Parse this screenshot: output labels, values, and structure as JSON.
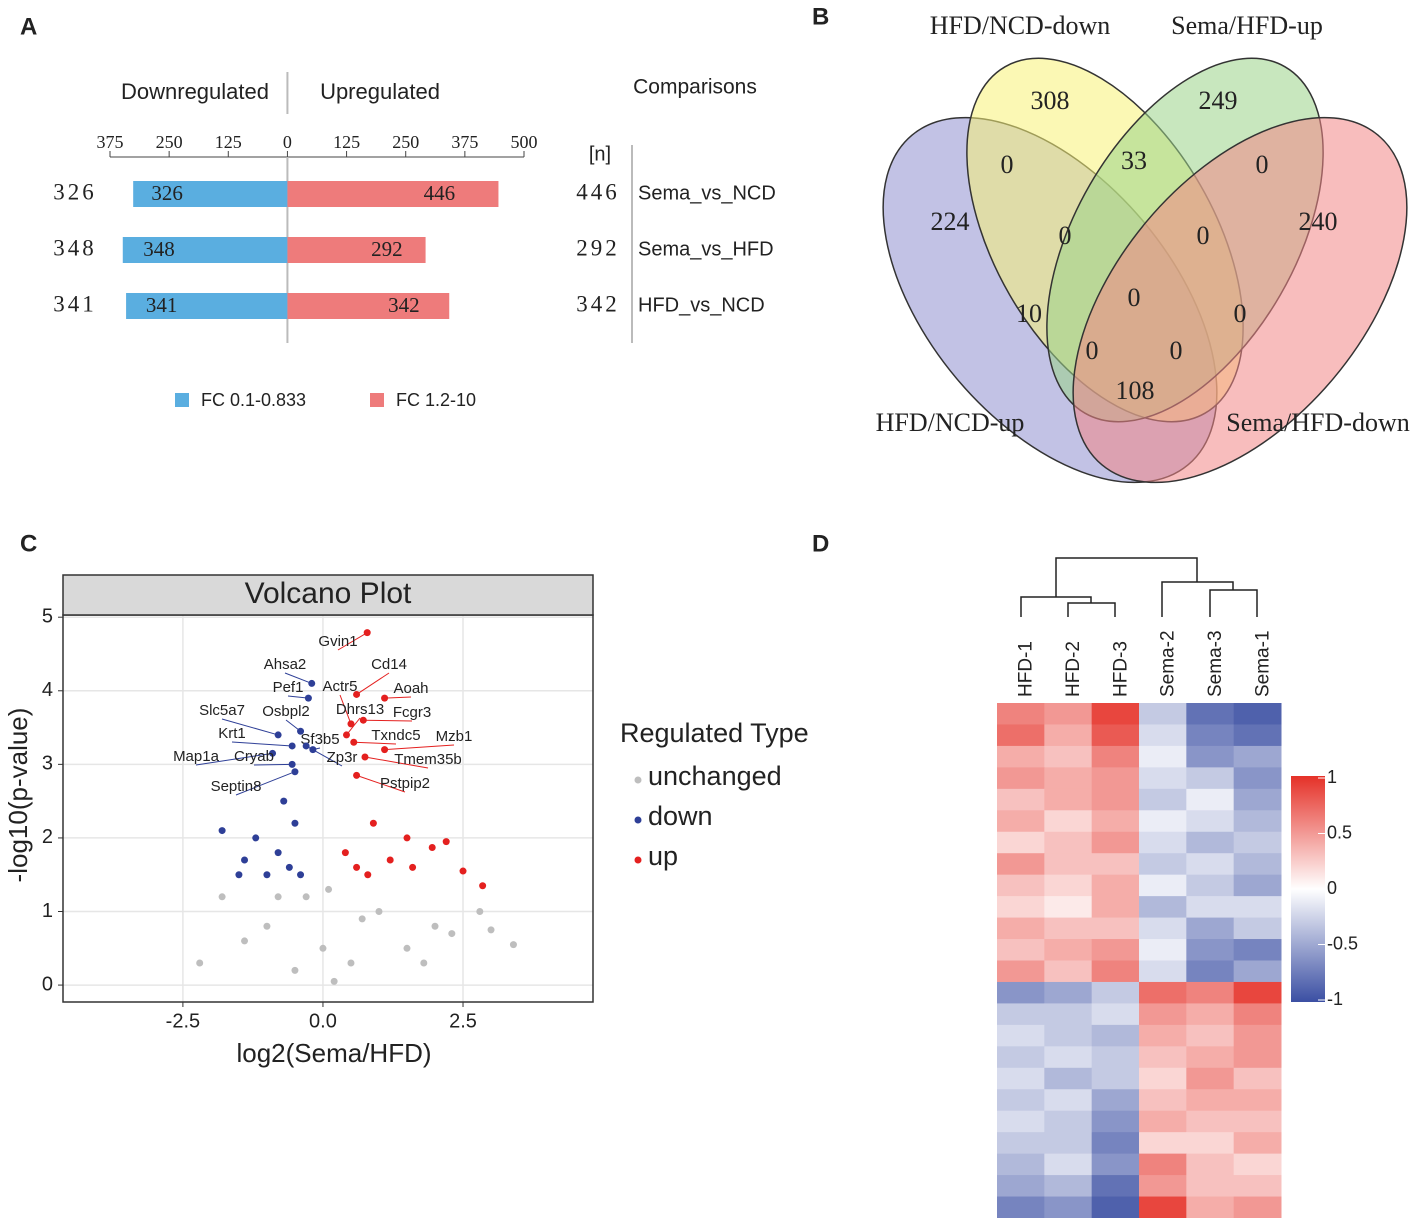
{
  "chart_data": [
    {
      "panel": "A",
      "type": "bar",
      "orientation": "horizontal",
      "side_labels": [
        "Downregulated",
        "Upregulated"
      ],
      "categories_title": "Comparisons",
      "count_label": "[n]",
      "categories": [
        "Sema_vs_NCD",
        "Sema_vs_HFD",
        "HFD_vs_NCD"
      ],
      "series": [
        {
          "name": "FC 0.1-0.833",
          "color": "#5aaee0",
          "values": [
            -326,
            -348,
            -341
          ],
          "value_labels": [
            "326",
            "348",
            "341"
          ]
        },
        {
          "name": "FC 1.2-10",
          "color": "#ee7b7b",
          "values": [
            446,
            292,
            342
          ]
        }
      ],
      "xlim": [
        -375,
        500
      ],
      "xticks": [
        {
          "value": -375,
          "label": "375"
        },
        {
          "value": -250,
          "label": "250"
        },
        {
          "value": -125,
          "label": "125"
        },
        0,
        125,
        250,
        375,
        500
      ]
    },
    {
      "panel": "B",
      "type": "venn",
      "sets": [
        {
          "name": "HFD/NCD-up",
          "color": "#9090d0",
          "label_color": "#3f4fb5"
        },
        {
          "name": "HFD/NCD-down",
          "color": "#f7f277",
          "label_color": "#8a8a2a"
        },
        {
          "name": "Sema/HFD-up",
          "color": "#9ad488",
          "label_color": "#3a9a3a"
        },
        {
          "name": "Sema/HFD-down",
          "color": "#f38787",
          "label_color": "#e03030"
        }
      ],
      "values": [
        308,
        249,
        224,
        240,
        0,
        33,
        0,
        0,
        0,
        10,
        0,
        0,
        0,
        0,
        108
      ]
    },
    {
      "panel": "C",
      "type": "scatter",
      "title": "Volcano Plot",
      "xlabel": "log2(Sema/HFD)",
      "ylabel": "-log10(p-value)",
      "legend_title": "Regulated Type",
      "xlim": [
        -4.64,
        4.82
      ],
      "ylim": [
        -0.23,
        5.03
      ],
      "xticks": [
        -2.5,
        {
          "value": 0,
          "label": "0.0"
        },
        2.5
      ],
      "yticks": [
        0,
        1,
        2,
        3,
        4,
        5
      ],
      "grid": true,
      "series": [
        {
          "name": "unchanged",
          "color": "#bebebe",
          "x": [
            3.4,
            2.8,
            2.3,
            1.5,
            1.0,
            0.5,
            0,
            -0.3,
            -1.0,
            -1.8,
            -2.2,
            0.2,
            0.7,
            -0.5,
            1.8,
            2.0,
            -1.4,
            0.1,
            3.0,
            -0.8
          ],
          "y": [
            0.55,
            1.0,
            0.7,
            0.5,
            1.0,
            0.3,
            0.5,
            1.2,
            0.8,
            1.2,
            0.3,
            0.05,
            0.9,
            0.2,
            0.3,
            0.8,
            0.6,
            1.3,
            0.75,
            1.2
          ]
        },
        {
          "name": "down",
          "color": "#2e3f97",
          "x": [
            -0.2,
            -0.26,
            -0.8,
            -0.4,
            -0.55,
            -0.18,
            -0.9,
            -0.55,
            -0.3,
            -0.5,
            -1.8,
            -1.4,
            -1.2,
            -1.0,
            -0.8,
            -0.6,
            -0.5,
            -0.4,
            -0.7,
            -1.5
          ],
          "y": [
            4.1,
            3.9,
            3.4,
            3.45,
            3.25,
            3.2,
            3.15,
            3.0,
            3.25,
            2.9,
            2.1,
            1.7,
            2.0,
            1.5,
            1.8,
            1.6,
            2.2,
            1.5,
            2.5,
            1.5
          ],
          "point_labels": [
            "Ahsa2",
            "Pef1",
            "Slc5a7",
            "Osbpl2",
            "Krt1",
            "Sf3b5",
            "Map1a",
            "Cryab",
            "Zp3r",
            "Septin8",
            null,
            null,
            null,
            null,
            null,
            null,
            null,
            null,
            null,
            null
          ]
        },
        {
          "name": "up",
          "color": "#e4201f",
          "x": [
            0.79,
            0.6,
            0.5,
            1.1,
            0.42,
            0.72,
            0.55,
            1.1,
            0.75,
            0.6,
            2.2,
            1.95,
            2.5,
            2.85,
            1.5,
            1.2,
            0.9,
            0.6,
            0.4,
            0.8,
            1.6
          ],
          "y": [
            4.79,
            3.95,
            3.55,
            3.9,
            3.4,
            3.6,
            3.3,
            3.2,
            3.1,
            2.85,
            1.95,
            1.87,
            1.55,
            1.35,
            2.0,
            1.7,
            2.2,
            1.6,
            1.8,
            1.5,
            1.6
          ],
          "point_labels": [
            "Gvin1",
            "Cd14",
            "Actr5",
            "Aoah",
            "Dhrs13",
            "Fcgr3",
            "Txndc5",
            "Mzb1",
            "Tmem35b",
            "Pstpip2",
            null,
            null,
            null,
            null,
            null,
            null,
            null,
            null,
            null,
            null,
            null
          ]
        }
      ]
    },
    {
      "panel": "D",
      "type": "heatmap",
      "columns": [
        "HFD-1",
        "HFD-2",
        "HFD-3",
        "Sema-2",
        "Sema-3",
        "Sema-1"
      ],
      "values": [
        [
          0.6,
          0.5,
          0.9,
          -0.3,
          -0.8,
          -0.9
        ],
        [
          0.7,
          0.4,
          0.8,
          -0.2,
          -0.7,
          -0.8
        ],
        [
          0.4,
          0.3,
          0.6,
          -0.1,
          -0.6,
          -0.5
        ],
        [
          0.5,
          0.4,
          0.5,
          -0.2,
          -0.3,
          -0.6
        ],
        [
          0.3,
          0.4,
          0.5,
          -0.3,
          -0.1,
          -0.5
        ],
        [
          0.4,
          0.2,
          0.4,
          -0.1,
          -0.2,
          -0.4
        ],
        [
          0.2,
          0.3,
          0.5,
          -0.2,
          -0.4,
          -0.3
        ],
        [
          0.5,
          0.3,
          0.3,
          -0.3,
          -0.2,
          -0.4
        ],
        [
          0.3,
          0.2,
          0.4,
          -0.1,
          -0.3,
          -0.5
        ],
        [
          0.2,
          0.1,
          0.4,
          -0.4,
          -0.2,
          -0.2
        ],
        [
          0.4,
          0.3,
          0.3,
          -0.2,
          -0.5,
          -0.3
        ],
        [
          0.3,
          0.4,
          0.5,
          -0.1,
          -0.6,
          -0.7
        ],
        [
          0.5,
          0.3,
          0.6,
          -0.2,
          -0.7,
          -0.5
        ],
        [
          -0.6,
          -0.5,
          -0.3,
          0.7,
          0.6,
          0.9
        ],
        [
          -0.3,
          -0.3,
          -0.2,
          0.5,
          0.4,
          0.6
        ],
        [
          -0.2,
          -0.3,
          -0.4,
          0.4,
          0.3,
          0.5
        ],
        [
          -0.3,
          -0.2,
          -0.3,
          0.3,
          0.4,
          0.5
        ],
        [
          -0.2,
          -0.4,
          -0.3,
          0.2,
          0.5,
          0.3
        ],
        [
          -0.3,
          -0.2,
          -0.5,
          0.3,
          0.4,
          0.4
        ],
        [
          -0.2,
          -0.3,
          -0.6,
          0.4,
          0.3,
          0.3
        ],
        [
          -0.3,
          -0.3,
          -0.7,
          0.2,
          0.2,
          0.4
        ],
        [
          -0.4,
          -0.2,
          -0.6,
          0.6,
          0.3,
          0.2
        ],
        [
          -0.5,
          -0.4,
          -0.8,
          0.5,
          0.3,
          0.3
        ],
        [
          -0.7,
          -0.6,
          -0.9,
          0.9,
          0.4,
          0.5
        ]
      ],
      "zlim": [
        -1,
        1
      ],
      "zticks": [
        1,
        0.5,
        0,
        -0.5,
        -1
      ],
      "colors": [
        "#3b4fa3",
        "#ffffff",
        "#e53128"
      ]
    }
  ]
}
